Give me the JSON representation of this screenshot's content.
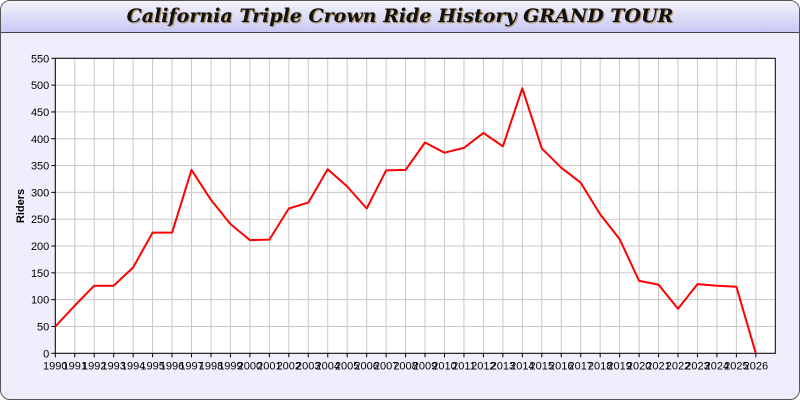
{
  "chart_data": {
    "type": "line",
    "title": "California Triple Crown Ride History GRAND TOUR",
    "xlabel": "",
    "ylabel": "Riders",
    "xlim": [
      1990,
      2027
    ],
    "ylim": [
      0,
      550
    ],
    "grid": true,
    "yticks": [
      0,
      50,
      100,
      150,
      200,
      250,
      300,
      350,
      400,
      450,
      500,
      550
    ],
    "x": [
      1990,
      1991,
      1992,
      1993,
      1994,
      1995,
      1996,
      1997,
      1998,
      1999,
      2000,
      2001,
      2002,
      2003,
      2004,
      2005,
      2006,
      2007,
      2008,
      2009,
      2010,
      2011,
      2012,
      2013,
      2014,
      2015,
      2016,
      2017,
      2018,
      2019,
      2020,
      2021,
      2022,
      2023,
      2024,
      2025,
      2026
    ],
    "series": [
      {
        "values": [
          50,
          89,
          126,
          126,
          160,
          225,
          225,
          342,
          286,
          241,
          211,
          212,
          270,
          281,
          343,
          311,
          270,
          341,
          342,
          393,
          374,
          383,
          411,
          386,
          494,
          382,
          346,
          318,
          259,
          213,
          135,
          128,
          83,
          129,
          126,
          124,
          0
        ],
        "color": "#ff0000"
      }
    ]
  }
}
